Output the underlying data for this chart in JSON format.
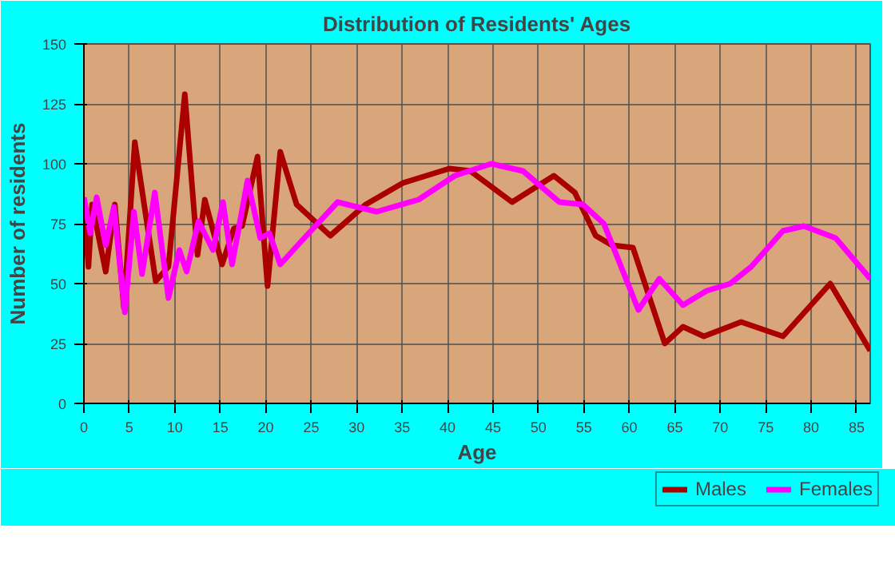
{
  "chart_data": {
    "type": "line",
    "title": "Distribution of Residents' Ages",
    "xlabel": "Age",
    "ylabel": "Number of residents",
    "xlim": [
      0,
      86.5
    ],
    "xticks": [
      0,
      5,
      10,
      15,
      20,
      25,
      30,
      35,
      40,
      45,
      50,
      55,
      60,
      65,
      70,
      75,
      80,
      85
    ],
    "ylim": [
      0,
      150
    ],
    "yticks": [
      0,
      25,
      50,
      75,
      100,
      125,
      150
    ],
    "grid": true,
    "legend": "bottom right",
    "line_style": "solid",
    "marker": "none",
    "series": [
      {
        "name": "Males",
        "color": "#aa0000",
        "x": [
          0,
          0.5,
          0.9,
          2.4,
          3.4,
          4.4,
          5.6,
          7.9,
          9.3,
          11.1,
          12.5,
          13.3,
          15.2,
          16.5,
          17.4,
          19.1,
          20.2,
          21.6,
          23.4,
          27.1,
          31,
          35.1,
          40.2,
          42.5,
          47.1,
          51.7,
          54,
          56.3,
          58.1,
          60.4,
          63.9,
          65.9,
          68.2,
          72.3,
          76.9,
          82.1,
          86.5
        ],
        "values": [
          83,
          57,
          83,
          55,
          83,
          40,
          109,
          51,
          57,
          129,
          62,
          85,
          58,
          73,
          74,
          103,
          49,
          105,
          83,
          70,
          83,
          92,
          98,
          97,
          84,
          95,
          88,
          70,
          66,
          65,
          25,
          32,
          28,
          34,
          28,
          50,
          22
        ]
      },
      {
        "name": "Females",
        "color": "#ff00ff",
        "x": [
          0,
          0.7,
          1.4,
          2.4,
          3.3,
          4.5,
          5.5,
          6.4,
          7.8,
          9.3,
          10.5,
          11.3,
          12.6,
          14.2,
          15.3,
          16.3,
          18,
          19.4,
          20.4,
          21.6,
          24,
          27.9,
          32.2,
          36.8,
          40.8,
          44.8,
          48.3,
          52.3,
          54.9,
          57.2,
          61,
          63.3,
          65.9,
          68.5,
          71.1,
          73.4,
          76.9,
          79.2,
          82.7,
          86.5
        ],
        "values": [
          86,
          71,
          86,
          66,
          82,
          38,
          80,
          54,
          88,
          44,
          64,
          55,
          76,
          64,
          84,
          58,
          93,
          69,
          71,
          58,
          68,
          84,
          80,
          85,
          95,
          100,
          97,
          84,
          83,
          75,
          39,
          52,
          41,
          47,
          50,
          57,
          72,
          74,
          69,
          52
        ]
      }
    ]
  }
}
